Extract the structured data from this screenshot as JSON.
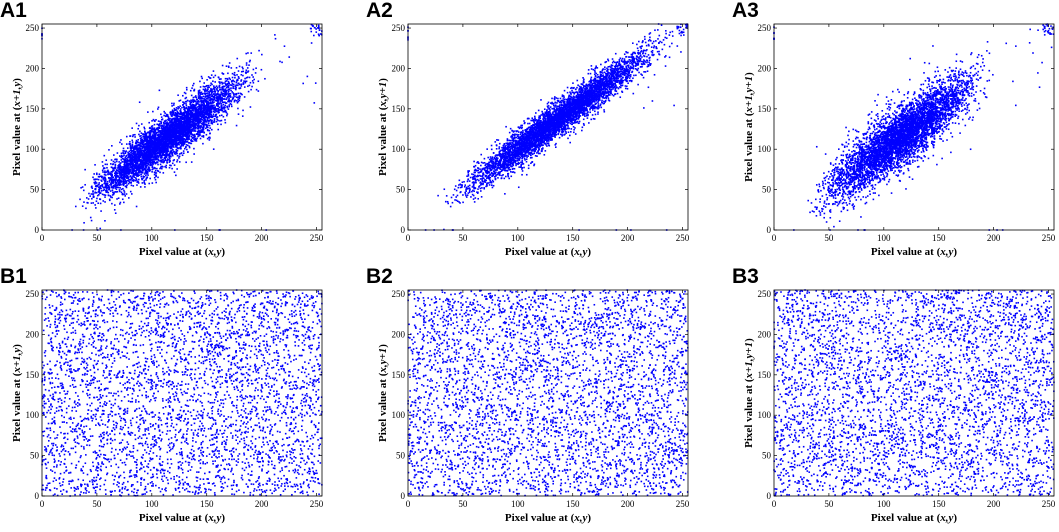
{
  "point_color": "#0000ff",
  "chart_data": [
    {
      "panel": "A1",
      "type": "scatter",
      "xlabel_pre": "Pixel value at (",
      "xlabel_var": "x,y",
      "xlabel_post": ")",
      "ylabel_pre": "Pixel value at (",
      "ylabel_var": "x+1,y",
      "ylabel_post": ")",
      "xlim": [
        0,
        255
      ],
      "ylim": [
        0,
        255
      ],
      "xticks": [
        0,
        50,
        100,
        150,
        200,
        250
      ],
      "yticks": [
        0,
        50,
        100,
        150,
        200,
        250
      ],
      "pattern": "correlated",
      "x_range_main": [
        25,
        205
      ],
      "spread": 12,
      "point_count": 5000,
      "correlation_approx": 0.95
    },
    {
      "panel": "A2",
      "type": "scatter",
      "xlabel_pre": "Pixel value at (",
      "xlabel_var": "x,y",
      "xlabel_post": ")",
      "ylabel_pre": "Pixel value at (",
      "ylabel_var": "x,y+1",
      "ylabel_post": ")",
      "xlim": [
        0,
        255
      ],
      "ylim": [
        0,
        255
      ],
      "xticks": [
        0,
        50,
        100,
        150,
        200,
        250
      ],
      "yticks": [
        0,
        50,
        100,
        150,
        200,
        250
      ],
      "pattern": "correlated",
      "x_range_main": [
        25,
        250
      ],
      "spread": 9,
      "point_count": 5000,
      "correlation_approx": 0.97
    },
    {
      "panel": "A3",
      "type": "scatter",
      "xlabel_pre": "Pixel value at (",
      "xlabel_var": "x,y",
      "xlabel_post": ")",
      "ylabel_pre": "Pixel value at (",
      "ylabel_var": "x+1,y+1",
      "ylabel_post": ")",
      "xlim": [
        0,
        255
      ],
      "ylim": [
        0,
        255
      ],
      "xticks": [
        0,
        50,
        100,
        150,
        200,
        250
      ],
      "yticks": [
        0,
        50,
        100,
        150,
        200,
        250
      ],
      "pattern": "correlated",
      "x_range_main": [
        25,
        205
      ],
      "spread": 15,
      "point_count": 5000,
      "correlation_approx": 0.92
    },
    {
      "panel": "B1",
      "type": "scatter",
      "xlabel_pre": "Pixel value at (",
      "xlabel_var": "x,y",
      "xlabel_post": ")",
      "ylabel_pre": "Pixel value at (",
      "ylabel_var": "x+1,y",
      "ylabel_post": ")",
      "xlim": [
        0,
        255
      ],
      "ylim": [
        0,
        255
      ],
      "xticks": [
        0,
        50,
        100,
        150,
        200,
        250
      ],
      "yticks": [
        0,
        50,
        100,
        150,
        200,
        250
      ],
      "pattern": "uniform",
      "point_count": 4000,
      "correlation_approx": 0.0
    },
    {
      "panel": "B2",
      "type": "scatter",
      "xlabel_pre": "Pixel value at (",
      "xlabel_var": "x,y",
      "xlabel_post": ")",
      "ylabel_pre": "Pixel value at (",
      "ylabel_var": "x,y+1",
      "ylabel_post": ")",
      "xlim": [
        0,
        255
      ],
      "ylim": [
        0,
        255
      ],
      "xticks": [
        0,
        50,
        100,
        150,
        200,
        250
      ],
      "yticks": [
        0,
        50,
        100,
        150,
        200,
        250
      ],
      "pattern": "uniform",
      "point_count": 4000,
      "correlation_approx": 0.0
    },
    {
      "panel": "B3",
      "type": "scatter",
      "xlabel_pre": "Pixel value at (",
      "xlabel_var": "x,y",
      "xlabel_post": ")",
      "ylabel_pre": "Pixel value at (",
      "ylabel_var": "x+1,y+1",
      "ylabel_post": ")",
      "xlim": [
        0,
        255
      ],
      "ylim": [
        0,
        255
      ],
      "xticks": [
        0,
        50,
        100,
        150,
        200,
        250
      ],
      "yticks": [
        0,
        50,
        100,
        150,
        200,
        250
      ],
      "pattern": "uniform",
      "point_count": 4000,
      "correlation_approx": 0.0
    }
  ]
}
